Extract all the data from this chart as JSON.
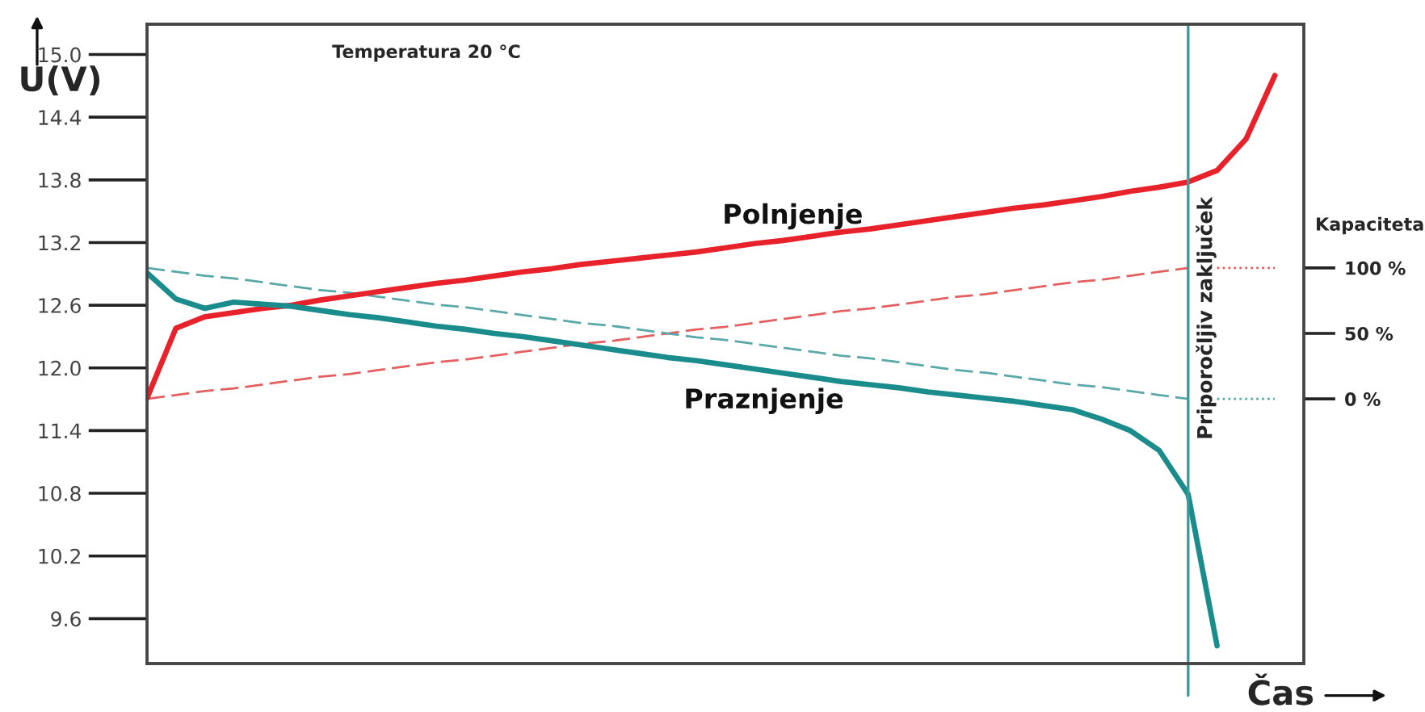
{
  "chart_data": {
    "type": "line",
    "annotations": [
      "Temperatura 20 °C"
    ],
    "xlabel": "Čas",
    "ylabel": "U(V)",
    "y2label": "Kapaciteta",
    "categories": [
      null,
      null,
      null,
      null,
      null,
      null,
      null,
      null,
      null,
      null,
      null,
      null,
      null,
      null,
      null,
      null,
      null,
      null,
      null,
      null,
      null,
      null,
      null,
      null,
      null,
      null,
      null,
      null,
      null,
      null,
      null,
      null,
      null,
      null,
      null,
      null,
      null,
      null,
      null,
      null,
      null
    ],
    "ylim": [
      9.17,
      15.29
    ],
    "yticks": [
      9.6,
      10.2,
      10.8,
      11.4,
      {
        "value": 12,
        "label": "12.0"
      },
      12.6,
      13.2,
      13.8,
      14.4,
      {
        "value": 15,
        "label": "15.0"
      }
    ],
    "y2lim": [
      -202,
      286
    ],
    "y2ticks": [
      {
        "value": 0,
        "label": "0 %"
      },
      {
        "value": 50,
        "label": "50 %"
      },
      {
        "value": 100,
        "label": "100 %"
      }
    ],
    "tick_labels": "y",
    "grid": false,
    "legend": false,
    "marker": "none",
    "ref_lines": [
      {
        "axis": "x",
        "label": "Priporočljiv zaključek",
        "color": "#3a9a9a",
        "line_style": "solid"
      }
    ],
    "series": [
      {
        "name": "Polnjenje",
        "color": "#e8222a",
        "line_style": "solid",
        "values": [
          11.71,
          12.38,
          12.49,
          12.53,
          12.57,
          12.6,
          12.65,
          12.69,
          12.73,
          12.77,
          12.81,
          12.84,
          12.88,
          12.92,
          12.95,
          12.99,
          13.02,
          13.05,
          13.08,
          13.11,
          13.15,
          13.19,
          13.22,
          13.26,
          13.3,
          13.33,
          13.37,
          13.41,
          13.45,
          13.49,
          13.53,
          13.56,
          13.6,
          13.64,
          13.69,
          13.73,
          13.78,
          13.89,
          14.19,
          14.8,
          null
        ]
      },
      {
        "name": "Praznjenje",
        "color": "#1a8c8c",
        "line_style": "solid",
        "values": [
          12.91,
          12.66,
          12.57,
          12.63,
          12.61,
          12.59,
          12.55,
          12.51,
          12.48,
          12.44,
          12.4,
          12.37,
          12.33,
          12.3,
          12.26,
          12.22,
          12.18,
          12.14,
          12.1,
          12.07,
          12.03,
          11.99,
          11.95,
          11.91,
          11.87,
          11.84,
          11.81,
          11.77,
          11.74,
          11.71,
          11.68,
          11.64,
          11.6,
          11.51,
          11.4,
          11.21,
          10.79,
          9.34,
          null,
          null,
          null
        ]
      },
      {
        "color": "#e46060",
        "line_style": "dashed",
        "axis": "y2",
        "values": [
          0,
          3,
          6,
          8,
          11,
          14,
          17,
          19,
          22,
          25,
          28,
          30,
          33,
          36,
          39,
          42,
          44,
          47,
          50,
          53,
          55,
          58,
          61,
          64,
          67,
          69,
          72,
          75,
          78,
          80,
          83,
          86,
          89,
          91,
          94,
          97,
          100,
          null,
          null,
          null,
          null
        ]
      },
      {
        "color": "#e46060",
        "line_style": "dotted",
        "axis": "y2",
        "values": [
          null,
          null,
          null,
          null,
          null,
          null,
          null,
          null,
          null,
          null,
          null,
          null,
          null,
          null,
          null,
          null,
          null,
          null,
          null,
          null,
          null,
          null,
          null,
          null,
          null,
          null,
          null,
          null,
          null,
          null,
          null,
          null,
          null,
          null,
          null,
          null,
          null,
          100,
          100,
          100,
          null
        ]
      },
      {
        "color": "#5aa8a8",
        "line_style": "dashed",
        "axis": "y2",
        "values": [
          100,
          97,
          94,
          92,
          89,
          86,
          83,
          81,
          78,
          75,
          72,
          70,
          67,
          64,
          61,
          58,
          56,
          53,
          50,
          47,
          45,
          42,
          39,
          36,
          33,
          31,
          28,
          25,
          22,
          20,
          17,
          14,
          11,
          9,
          6,
          3,
          0,
          null,
          null,
          null,
          null
        ]
      },
      {
        "color": "#5aa8a8",
        "line_style": "dotted",
        "axis": "y2",
        "values": [
          null,
          null,
          null,
          null,
          null,
          null,
          null,
          null,
          null,
          null,
          null,
          null,
          null,
          null,
          null,
          null,
          null,
          null,
          null,
          null,
          null,
          null,
          null,
          null,
          null,
          null,
          null,
          null,
          null,
          null,
          null,
          null,
          null,
          null,
          null,
          null,
          null,
          0,
          0,
          0,
          null
        ]
      }
    ]
  }
}
